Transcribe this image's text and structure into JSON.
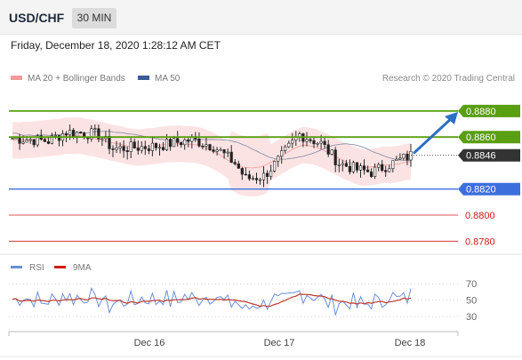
{
  "header": {
    "symbol": "USD/CHF",
    "timeframe": "30 MIN",
    "datetime": "Friday, December 18, 2020 1:28:12 AM CET"
  },
  "legend": {
    "ma20_label": "MA 20 + Bollinger Bands",
    "ma20_color": "#f39a9a",
    "ma50_label": "MA 50",
    "ma50_color": "#3d5a99",
    "credit": "Research © 2020 Trading Central"
  },
  "rsi_legend": {
    "rsi_label": "RSI",
    "rsi_color": "#6b8fd6",
    "ma_label": "9MA",
    "ma_color": "#d11a1a"
  },
  "chart_data": {
    "type": "candlestick",
    "price_range": [
      0.8772,
      0.8897
    ],
    "x_ticks": [
      "Dec 16",
      "Dec 17",
      "Dec 18"
    ],
    "levels": [
      {
        "value": 0.888,
        "label": "0.8880",
        "kind": "resistance",
        "color": "#5a9e12"
      },
      {
        "value": 0.886,
        "label": "0.8860",
        "kind": "resistance",
        "color": "#5a9e12"
      },
      {
        "value": 0.8846,
        "label": "0.8846",
        "kind": "last",
        "color": "#333333"
      },
      {
        "value": 0.882,
        "label": "0.8820",
        "kind": "pivot",
        "color": "#3d6fdc"
      },
      {
        "value": 0.88,
        "label": "0.8800",
        "kind": "support",
        "color": "#d11a1a"
      },
      {
        "value": 0.878,
        "label": "0.8780",
        "kind": "support",
        "color": "#d11a1a"
      }
    ],
    "arrow": {
      "direction": "up",
      "target": 0.888,
      "color": "#2a6fc4"
    },
    "rsi": {
      "ticks": [
        70,
        50,
        30
      ],
      "range": [
        15,
        80
      ]
    }
  }
}
